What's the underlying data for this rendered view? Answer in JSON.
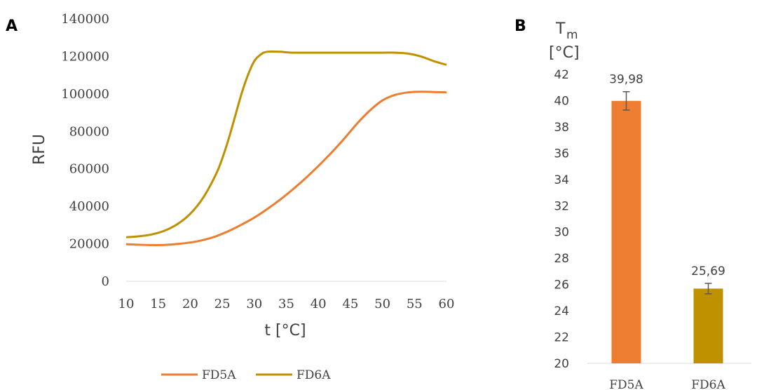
{
  "chart_data": [
    {
      "type": "line",
      "panel_label": "A",
      "xlabel": "t [°C]",
      "ylabel": "RFU",
      "xlim": [
        10,
        60
      ],
      "ylim": [
        0,
        140000
      ],
      "x_ticks": [
        "10",
        "15",
        "20",
        "25",
        "30",
        "35",
        "40",
        "45",
        "50",
        "55",
        "60"
      ],
      "y_ticks": [
        "0",
        "20000",
        "40000",
        "60000",
        "80000",
        "100000",
        "120000",
        "140000"
      ],
      "legend_position": "bottom",
      "series": [
        {
          "name": "FD5A",
          "color": "#ED7D31",
          "x": [
            10,
            12,
            14,
            16,
            18,
            20,
            22,
            24,
            26,
            28,
            30,
            32,
            34,
            36,
            38,
            40,
            42,
            44,
            46,
            48,
            50,
            52,
            54,
            56,
            58,
            60
          ],
          "y": [
            19800,
            19500,
            19300,
            19400,
            19900,
            20700,
            22000,
            24000,
            26800,
            30200,
            34000,
            38500,
            43500,
            49000,
            55000,
            61500,
            68500,
            76000,
            84000,
            91000,
            96500,
            99500,
            100800,
            101200,
            101000,
            100800
          ]
        },
        {
          "name": "FD6A",
          "color": "#BF9000",
          "x": [
            10,
            12,
            14,
            16,
            18,
            20,
            22,
            24,
            25,
            26,
            27,
            28,
            29,
            30,
            31,
            32,
            34,
            36,
            40,
            45,
            50,
            52,
            54,
            56,
            58,
            60
          ],
          "y": [
            23500,
            24000,
            25000,
            27000,
            30500,
            36000,
            44500,
            57000,
            65500,
            76000,
            88000,
            100000,
            110000,
            117500,
            121000,
            122500,
            122500,
            122000,
            122000,
            122000,
            122000,
            122000,
            121500,
            120000,
            117500,
            115500
          ]
        }
      ]
    },
    {
      "type": "bar",
      "panel_label": "B",
      "ylabel_main": "T",
      "ylabel_sub": "m",
      "ylabel_unit": "[°C]",
      "ylim": [
        20,
        42
      ],
      "y_ticks": [
        "20",
        "22",
        "24",
        "26",
        "28",
        "30",
        "32",
        "34",
        "36",
        "38",
        "40",
        "42"
      ],
      "categories": [
        "FD5A",
        "FD6A"
      ],
      "values": [
        39.98,
        25.69
      ],
      "value_labels": [
        "39,98",
        "25,69"
      ],
      "errors": [
        0.7,
        0.4
      ],
      "colors": [
        "#ED7D31",
        "#BF9000"
      ]
    }
  ]
}
